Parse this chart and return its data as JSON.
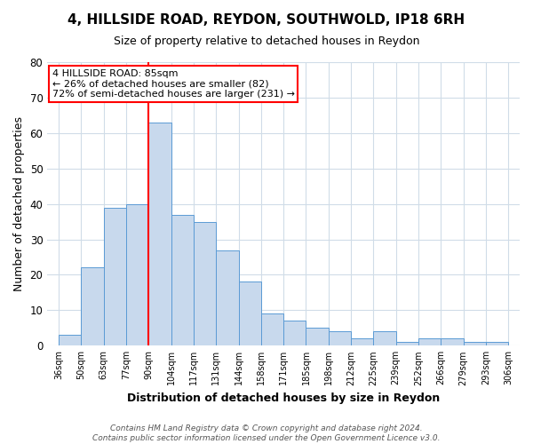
{
  "title1": "4, HILLSIDE ROAD, REYDON, SOUTHWOLD, IP18 6RH",
  "title2": "Size of property relative to detached houses in Reydon",
  "xlabel": "Distribution of detached houses by size in Reydon",
  "ylabel": "Number of detached properties",
  "footnote1": "Contains HM Land Registry data © Crown copyright and database right 2024.",
  "footnote2": "Contains public sector information licensed under the Open Government Licence v3.0.",
  "bin_labels": [
    "36sqm",
    "50sqm",
    "63sqm",
    "77sqm",
    "90sqm",
    "104sqm",
    "117sqm",
    "131sqm",
    "144sqm",
    "158sqm",
    "171sqm",
    "185sqm",
    "198sqm",
    "212sqm",
    "225sqm",
    "239sqm",
    "252sqm",
    "266sqm",
    "279sqm",
    "293sqm",
    "306sqm"
  ],
  "bar_heights": [
    3,
    22,
    39,
    40,
    63,
    37,
    35,
    27,
    18,
    9,
    7,
    5,
    4,
    2,
    4,
    1,
    2,
    2,
    1,
    1
  ],
  "bar_color": "#c8d9ed",
  "bar_edge_color": "#5b9bd5",
  "red_line_x": 4,
  "annotation_line1": "4 HILLSIDE ROAD: 85sqm",
  "annotation_line2": "← 26% of detached houses are smaller (82)",
  "annotation_line3": "72% of semi-detached houses are larger (231) →",
  "annotation_box_color": "white",
  "annotation_box_edge": "red",
  "ylim": [
    0,
    80
  ],
  "yticks": [
    0,
    10,
    20,
    30,
    40,
    50,
    60,
    70,
    80
  ],
  "grid_color": "#d0dce8",
  "background_color": "white",
  "title1_fontsize": 11,
  "title2_fontsize": 9,
  "xlabel_fontsize": 9,
  "ylabel_fontsize": 9,
  "footnote_fontsize": 6.5,
  "annotation_fontsize": 8
}
